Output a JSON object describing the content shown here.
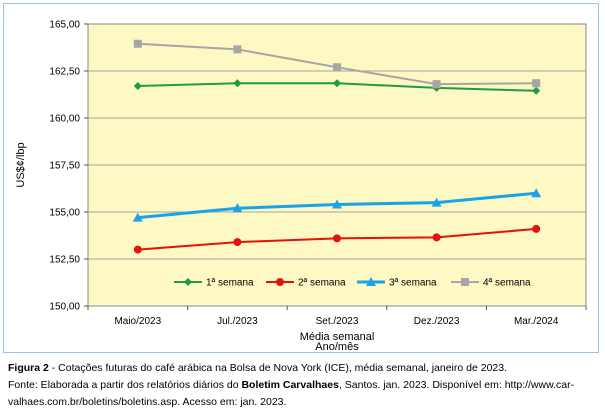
{
  "chart_data": {
    "type": "line",
    "categories": [
      "Maio/2023",
      "Jul./2023",
      "Set./2023",
      "Dez./2023",
      "Mar./2024"
    ],
    "series": [
      {
        "name": "1ª semana",
        "color": "#1f9a46",
        "marker": "diamond",
        "values": [
          161.7,
          161.85,
          161.85,
          161.6,
          161.45
        ]
      },
      {
        "name": "2ª semana",
        "color": "#e3120b",
        "marker": "circle",
        "values": [
          153.0,
          153.4,
          153.6,
          153.65,
          154.1
        ]
      },
      {
        "name": "3ª semana",
        "color": "#1aa3e8",
        "marker": "triangle",
        "values": [
          154.7,
          155.2,
          155.4,
          155.5,
          156.0
        ]
      },
      {
        "name": "4ª semana",
        "color": "#a6a6a6",
        "marker": "square",
        "values": [
          163.95,
          163.65,
          162.7,
          161.8,
          161.85
        ]
      }
    ],
    "ylim": [
      150,
      165
    ],
    "yticks": [
      "150,00",
      "152,50",
      "155,00",
      "157,50",
      "160,00",
      "162,50",
      "165,00"
    ],
    "ylabel": "US$¢/lbp",
    "xlabel_line1": "Média semanal",
    "xlabel_line2": "Ano/mês",
    "plot_background": "#fdf8c4",
    "gridlines": true,
    "legend_position": "bottom-inside"
  },
  "caption": {
    "figure_label": "Figura 2",
    "figure_text": " - Cotações futuras do café arábica na Bolsa de Nova York (ICE), média semanal, janeiro de 2023.",
    "source_prefix": "Fonte: Elaborada a partir dos relatórios diários do ",
    "source_bold": "Boletim Carvalhaes",
    "source_suffix": ", Santos. jan. 2023. Disponível em: http://www.car-",
    "source_line2": "valhaes.com.br/boletins/boletins.asp. Acesso em: jan. 2023."
  }
}
